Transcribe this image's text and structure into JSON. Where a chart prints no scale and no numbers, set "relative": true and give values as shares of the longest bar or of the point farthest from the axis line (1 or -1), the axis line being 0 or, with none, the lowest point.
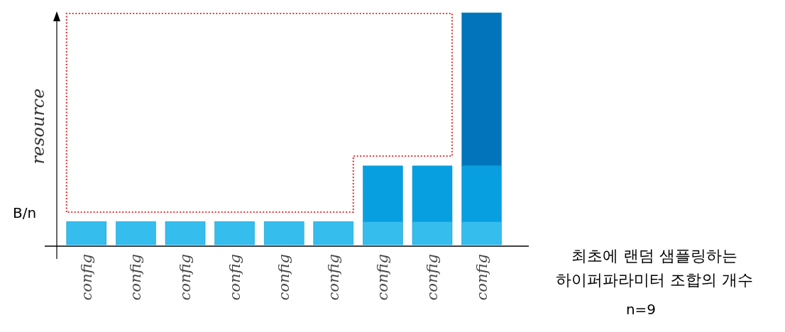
{
  "chart_data": {
    "type": "bar",
    "stacked": true,
    "relative": true,
    "ylabel": "resource",
    "xlabel": "최초에 랜덤 샘플링하는\n하이퍼파라미터 조합의 개수",
    "categories": [
      "config",
      "config",
      "config",
      "config",
      "config",
      "config",
      "config",
      "config",
      "config"
    ],
    "series": [
      {
        "color": "#35bdee",
        "values": [
          0.1,
          0.1,
          0.1,
          0.1,
          0.1,
          0.1,
          0.1,
          0.1,
          0.1
        ]
      },
      {
        "color": "#079fe0",
        "values": [
          null,
          null,
          null,
          null,
          null,
          null,
          0.24,
          0.24,
          0.24
        ]
      },
      {
        "color": "#0274bb",
        "values": [
          null,
          null,
          null,
          null,
          null,
          null,
          null,
          null,
          0.66
        ]
      }
    ],
    "annotations": [
      "B/n",
      "n=9"
    ]
  }
}
